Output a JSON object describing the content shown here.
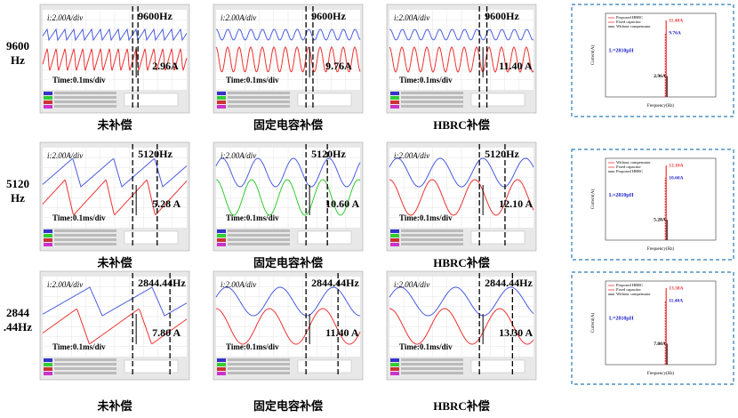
{
  "rows": [
    {
      "label": "9600 Hz",
      "cells": [
        {
          "scale": "i:2.00A/div",
          "freq": "9600Hz",
          "amp": "2.96A",
          "time": "Time:0.1ms/div",
          "caption": "未补偿"
        },
        {
          "scale": "i:2.00A/div",
          "freq": "9600Hz",
          "amp": "9.76A",
          "time": "Time:0.1ms/div",
          "caption": "固定电容补偿"
        },
        {
          "scale": "i:2.00A/div",
          "freq": "9600Hz",
          "amp": "11.40 A",
          "time": "Time:0.1ms/div",
          "caption": "HBRC补偿"
        }
      ],
      "spectrum": {
        "legend": [
          "Proposed HBRC",
          "Fixed capacitor",
          "Without compensator"
        ],
        "inductance": "L=2810μH",
        "peaks": [
          "11.40A",
          "9.76A",
          "2.96A"
        ],
        "ylabel": "Current(A)",
        "xlabel": "Frequency(Hz)"
      }
    },
    {
      "label": "5120 Hz",
      "cells": [
        {
          "scale": "i:2.00A/div",
          "freq": "5120Hz",
          "amp": "5.28 A",
          "time": "Time:0.1ms/div",
          "caption": "未补偿"
        },
        {
          "scale": "i:2.00A/div",
          "freq": "5120Hz",
          "amp": "10.60 A",
          "time": "Time:0.1ms/div",
          "caption": "固定电容补偿"
        },
        {
          "scale": "i:2.00A/div",
          "freq": "5120Hz",
          "amp": "12.10 A",
          "time": "Time:0.1ms/div",
          "caption": "HBRC补偿"
        }
      ],
      "spectrum": {
        "legend": [
          "Without compensator",
          "Fixed capacitor",
          "Proposed HBRC"
        ],
        "inductance": "L=2810μH",
        "peaks": [
          "12.10A",
          "10.60A",
          "5.28A"
        ],
        "ylabel": "Current(A)",
        "xlabel": "Frequency(Hz)"
      }
    },
    {
      "label": "2844.44Hz",
      "cells": [
        {
          "scale": "i:2.00A/div",
          "freq": "2844.44Hz",
          "amp": "7.80 A",
          "time": "Time:0.1ms/div",
          "caption": "未补偿"
        },
        {
          "scale": "i:2.00A/div",
          "freq": "2844.44Hz",
          "amp": "11.40 A",
          "time": "Time:0.1ms/div",
          "caption": "固定电容补偿"
        },
        {
          "scale": "i:2.00A/div",
          "freq": "2844.44Hz",
          "amp": "13.30 A",
          "time": "Time:0.1ms/div",
          "caption": "HBRC补偿"
        }
      ],
      "spectrum": {
        "legend": [
          "Proposed HBRC",
          "Fixed capacitor",
          "Without compensator"
        ],
        "inductance": "L=2810μH",
        "peaks": [
          "13.30A",
          "11.40A",
          "7.80A"
        ],
        "ylabel": "Current(A)",
        "xlabel": "Frequency(Hz)"
      }
    }
  ]
}
